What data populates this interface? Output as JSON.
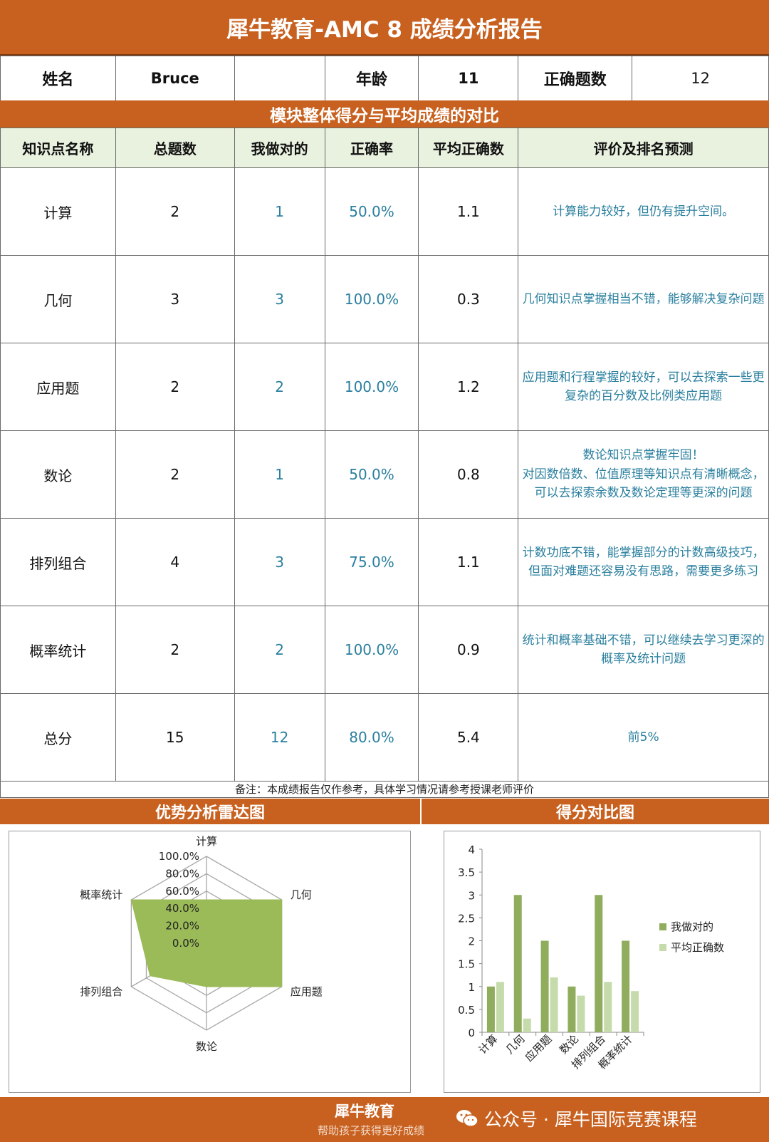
{
  "header": {
    "title": "犀牛教育-AMC 8 成绩分析报告"
  },
  "info": {
    "name_label": "姓名",
    "name_value": "Bruce",
    "age_label": "年龄",
    "age_value": "11",
    "correct_label": "正确题数",
    "correct_value": "12"
  },
  "section_title": "模块整体得分与平均成绩的对比",
  "table": {
    "headers": [
      "知识点名称",
      "总题数",
      "我做对的",
      "正确率",
      "平均正确数",
      "评价及排名预测"
    ],
    "rows": [
      {
        "name": "计算",
        "total": "2",
        "correct": "1",
        "rate": "50.0%",
        "avg": "1.1",
        "comment": "计算能力较好，但仍有提升空间。"
      },
      {
        "name": "几何",
        "total": "3",
        "correct": "3",
        "rate": "100.0%",
        "avg": "0.3",
        "comment": "几何知识点掌握相当不错，能够解决复杂问题"
      },
      {
        "name": "应用题",
        "total": "2",
        "correct": "2",
        "rate": "100.0%",
        "avg": "1.2",
        "comment": "应用题和行程掌握的较好，可以去探索一些更复杂的百分数及比例类应用题"
      },
      {
        "name": "数论",
        "total": "2",
        "correct": "1",
        "rate": "50.0%",
        "avg": "0.8",
        "comment": "数论知识点掌握牢固！\n对因数倍数、位值原理等知识点有清晰概念，可以去探索余数及数论定理等更深的问题"
      },
      {
        "name": "排列组合",
        "total": "4",
        "correct": "3",
        "rate": "75.0%",
        "avg": "1.1",
        "comment": "计数功底不错，能掌握部分的计数高级技巧，但面对难题还容易没有思路，需要更多练习"
      },
      {
        "name": "概率统计",
        "total": "2",
        "correct": "2",
        "rate": "100.0%",
        "avg": "0.9",
        "comment": "统计和概率基础不错，可以继续去学习更深的概率及统计问题"
      },
      {
        "name": "总分",
        "total": "15",
        "correct": "12",
        "rate": "80.0%",
        "avg": "5.4",
        "comment": "前5%"
      }
    ]
  },
  "note": "备注：本成绩报告仅作参考，具体学习情况请参考授课老师评价",
  "radar_title": "优势分析雷达图",
  "bar_title": "得分对比图",
  "chart_data": [
    {
      "type": "radar",
      "categories": [
        "计算",
        "几何",
        "应用题",
        "数论",
        "排列组合",
        "概率统计"
      ],
      "series": [
        {
          "values": [
            50,
            100,
            100,
            50,
            75,
            100
          ]
        }
      ],
      "scale_labels": [
        "0.0%",
        "20.0%",
        "40.0%",
        "60.0%",
        "80.0%",
        "100.0%"
      ],
      "range": [
        0,
        100
      ],
      "color": "#9bbb59"
    },
    {
      "type": "bar",
      "categories": [
        "计算",
        "几何",
        "应用题",
        "数论",
        "排列组合",
        "概率统计"
      ],
      "series": [
        {
          "name": "我做对的",
          "values": [
            1,
            3,
            2,
            1,
            3,
            2
          ],
          "color": "#8fad5d"
        },
        {
          "name": "平均正确数",
          "values": [
            1.1,
            0.3,
            1.2,
            0.8,
            1.1,
            0.9
          ],
          "color": "#c6dbac"
        }
      ],
      "y_ticks": [
        "0",
        "0.5",
        "1",
        "1.5",
        "2",
        "2.5",
        "3",
        "3.5",
        "4"
      ],
      "ylim": [
        0,
        4
      ],
      "legend": "right",
      "grid": false
    }
  ],
  "footer": {
    "brand": "犀牛教育",
    "slogan": "帮助孩子获得更好成绩",
    "wechat_text": "公众号 · 犀牛国际竞赛课程"
  },
  "colors": {
    "band": "#c8611f",
    "header_bg": "#e9f1df",
    "accent_text": "#2a7f9e"
  }
}
